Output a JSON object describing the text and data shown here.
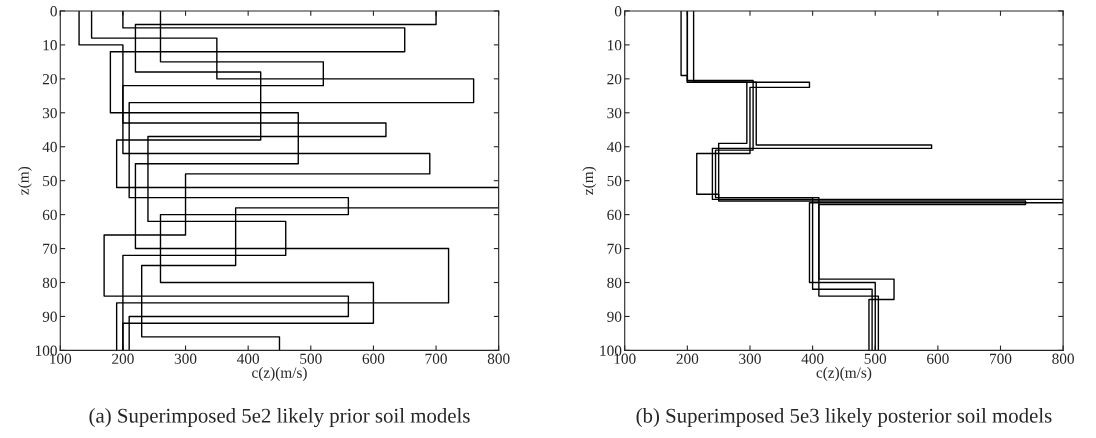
{
  "chart_data": [
    {
      "type": "line",
      "xlabel": "c(z)(m/s)",
      "ylabel": "z(m)",
      "xlim": [
        100,
        800
      ],
      "xticks": [
        100,
        200,
        300,
        400,
        500,
        600,
        700,
        800
      ],
      "ylim": [
        100,
        0
      ],
      "yticks": [
        0,
        10,
        20,
        30,
        40,
        50,
        60,
        70,
        80,
        90,
        100
      ],
      "grid": false,
      "legend": false,
      "annotations": [
        "(a) Superimposed 5e2 likely prior soil models"
      ],
      "series": [
        {
          "color": "#000000",
          "x": [
            200,
            200,
            650,
            650,
            180,
            180,
            480,
            480,
            220,
            220,
            720,
            720,
            190,
            190
          ],
          "values": [
            0,
            5,
            5,
            12,
            12,
            30,
            30,
            45,
            45,
            70,
            70,
            86,
            86,
            100
          ]
        },
        {
          "color": "#000000",
          "x": [
            150,
            150,
            350,
            350,
            760,
            760,
            210,
            210,
            560,
            560,
            260,
            260,
            600,
            600,
            200,
            200
          ],
          "values": [
            0,
            8,
            8,
            20,
            20,
            27,
            27,
            55,
            55,
            60,
            60,
            80,
            80,
            92,
            92,
            100
          ]
        },
        {
          "color": "#000000",
          "x": [
            700,
            700,
            220,
            220,
            420,
            420,
            190,
            190,
            800,
            800,
            380,
            380,
            230,
            230,
            450,
            450
          ],
          "values": [
            0,
            4,
            4,
            18,
            18,
            38,
            38,
            52,
            52,
            58,
            58,
            75,
            75,
            96,
            96,
            100
          ]
        },
        {
          "color": "#000000",
          "x": [
            260,
            260,
            520,
            520,
            200,
            200,
            690,
            690,
            300,
            300,
            170,
            170,
            560,
            560,
            210,
            210
          ],
          "values": [
            0,
            15,
            15,
            22,
            22,
            42,
            42,
            48,
            48,
            66,
            66,
            84,
            84,
            90,
            90,
            100
          ]
        },
        {
          "color": "#000000",
          "x": [
            130,
            130,
            200,
            200,
            620,
            620,
            240,
            240,
            460,
            460,
            200,
            200
          ],
          "values": [
            0,
            10,
            10,
            33,
            33,
            37,
            37,
            62,
            62,
            72,
            72,
            100
          ]
        }
      ]
    },
    {
      "type": "line",
      "xlabel": "c(z)(m/s)",
      "ylabel": "z(m)",
      "xlim": [
        100,
        800
      ],
      "xticks": [
        100,
        200,
        300,
        400,
        500,
        600,
        700,
        800
      ],
      "ylim": [
        100,
        0
      ],
      "yticks": [
        0,
        10,
        20,
        30,
        40,
        50,
        60,
        70,
        80,
        90,
        100
      ],
      "grid": false,
      "legend": false,
      "annotations": [
        "(b) Superimposed 5e3 likely posterior soil models"
      ],
      "series": [
        {
          "color": "#000000",
          "x": [
            200,
            200,
            305,
            305,
            245,
            245,
            400,
            400,
            495,
            495
          ],
          "values": [
            0,
            20.5,
            20.5,
            41,
            41,
            55,
            55,
            82,
            82,
            100
          ]
        },
        {
          "color": "#000000",
          "x": [
            200,
            200,
            310,
            310,
            590,
            590,
            240,
            240,
            800,
            800,
            395,
            395,
            500,
            500
          ],
          "values": [
            0,
            21,
            21,
            39.5,
            39.5,
            40.5,
            40.5,
            55.5,
            55.5,
            56.5,
            56.5,
            80,
            80,
            100
          ]
        },
        {
          "color": "#000000",
          "x": [
            190,
            190,
            200,
            200,
            395,
            395,
            300,
            300,
            215,
            215,
            250,
            250,
            740,
            740,
            410,
            410,
            530,
            530,
            490,
            490
          ],
          "values": [
            0,
            19,
            19,
            21,
            21,
            22.5,
            22.5,
            42,
            42,
            54,
            54,
            56,
            56,
            57,
            57,
            79,
            79,
            85,
            85,
            100
          ]
        },
        {
          "color": "#000000",
          "x": [
            210,
            210,
            295,
            295,
            250,
            250,
            410,
            410,
            505,
            505
          ],
          "values": [
            0,
            21,
            21,
            39,
            39,
            55,
            55,
            84,
            84,
            100
          ]
        }
      ]
    }
  ]
}
